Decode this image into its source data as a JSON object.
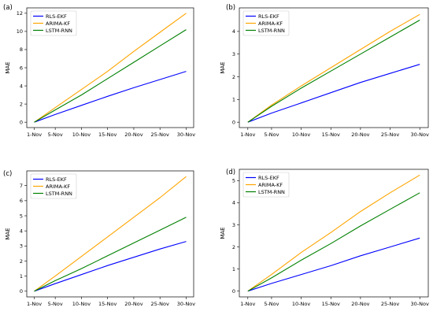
{
  "chart_data": [
    {
      "type": "line",
      "panel_label": "(a)",
      "ylabel": "MAE",
      "xlabel": "",
      "x_tick_labels": [
        "1-Nov",
        "5-Nov",
        "10-Nov",
        "15-Nov",
        "20-Nov",
        "25-Nov",
        "30-Nov"
      ],
      "x_tick_days": [
        1,
        5,
        10,
        15,
        20,
        25,
        30
      ],
      "xlim": [
        1,
        30
      ],
      "ylim": [
        0,
        12
      ],
      "y_ticks": [
        0,
        2,
        4,
        6,
        8,
        10,
        12
      ],
      "legend_position": "top-left",
      "grid": false,
      "series": [
        {
          "name": "RLS-EKF",
          "color": "#0000ff",
          "x": [
            1,
            5,
            10,
            15,
            20,
            25,
            30
          ],
          "y": [
            0.0,
            0.85,
            1.85,
            2.85,
            3.8,
            4.7,
            5.6
          ]
        },
        {
          "name": "ARIMA-KF",
          "color": "#ffa500",
          "x": [
            1,
            5,
            10,
            15,
            20,
            25,
            30
          ],
          "y": [
            0.0,
            1.6,
            3.6,
            5.6,
            7.8,
            9.9,
            12.0
          ]
        },
        {
          "name": "LSTM-RNN",
          "color": "#008000",
          "x": [
            1,
            5,
            10,
            15,
            20,
            25,
            30
          ],
          "y": [
            0.0,
            1.35,
            3.0,
            4.8,
            6.6,
            8.4,
            10.2
          ]
        }
      ]
    },
    {
      "type": "line",
      "panel_label": "(b)",
      "ylabel": "MAE",
      "xlabel": "",
      "x_tick_labels": [
        "1-Nov",
        "5-Nov",
        "10-Nov",
        "15-Nov",
        "20-Nov",
        "25-Nov",
        "30-Nov"
      ],
      "x_tick_days": [
        1,
        5,
        10,
        15,
        20,
        25,
        30
      ],
      "xlim": [
        1,
        30
      ],
      "ylim": [
        0,
        4.8
      ],
      "y_ticks": [
        0,
        1,
        2,
        3,
        4
      ],
      "legend_position": "top-left",
      "grid": false,
      "series": [
        {
          "name": "RLS-EKF",
          "color": "#0000ff",
          "x": [
            1,
            5,
            10,
            15,
            20,
            25,
            30
          ],
          "y": [
            0.0,
            0.4,
            0.85,
            1.3,
            1.75,
            2.15,
            2.55
          ]
        },
        {
          "name": "ARIMA-KF",
          "color": "#ffa500",
          "x": [
            1,
            5,
            10,
            15,
            20,
            25,
            30
          ],
          "y": [
            0.0,
            0.75,
            1.6,
            2.4,
            3.2,
            4.0,
            4.75
          ]
        },
        {
          "name": "LSTM-RNN",
          "color": "#008000",
          "x": [
            1,
            5,
            10,
            15,
            20,
            25,
            30
          ],
          "y": [
            0.0,
            0.7,
            1.5,
            2.25,
            3.0,
            3.75,
            4.5
          ]
        }
      ]
    },
    {
      "type": "line",
      "panel_label": "(c)",
      "ylabel": "MAE",
      "xlabel": "",
      "x_tick_labels": [
        "1-Nov",
        "5-Nov",
        "10-Nov",
        "15-Nov",
        "20-Nov",
        "25-Nov",
        "30-Nov"
      ],
      "x_tick_days": [
        1,
        5,
        10,
        15,
        20,
        25,
        30
      ],
      "xlim": [
        1,
        30
      ],
      "ylim": [
        0,
        7.6
      ],
      "y_ticks": [
        0,
        1,
        2,
        3,
        4,
        5,
        6,
        7
      ],
      "legend_position": "top-left",
      "grid": false,
      "series": [
        {
          "name": "RLS-EKF",
          "color": "#0000ff",
          "x": [
            1,
            5,
            10,
            15,
            20,
            25,
            30
          ],
          "y": [
            0.0,
            0.5,
            1.1,
            1.7,
            2.25,
            2.8,
            3.3
          ]
        },
        {
          "name": "ARIMA-KF",
          "color": "#ffa500",
          "x": [
            1,
            5,
            10,
            15,
            20,
            25,
            30
          ],
          "y": [
            0.0,
            1.0,
            2.3,
            3.6,
            4.9,
            6.2,
            7.6
          ]
        },
        {
          "name": "LSTM-RNN",
          "color": "#008000",
          "x": [
            1,
            5,
            10,
            15,
            20,
            25,
            30
          ],
          "y": [
            0.0,
            0.7,
            1.5,
            2.35,
            3.2,
            4.05,
            4.9
          ]
        }
      ]
    },
    {
      "type": "line",
      "panel_label": "(d)",
      "ylabel": "MAE",
      "xlabel": "",
      "x_tick_labels": [
        "1-Nov",
        "5-Nov",
        "10-Nov",
        "15-Nov",
        "20-Nov",
        "25-Nov",
        "30-Nov"
      ],
      "x_tick_days": [
        1,
        5,
        10,
        15,
        20,
        25,
        30
      ],
      "xlim": [
        1,
        30
      ],
      "ylim": [
        0,
        5.25
      ],
      "y_ticks": [
        0,
        1,
        2,
        3,
        4,
        5
      ],
      "legend_position": "top-left",
      "grid": false,
      "series": [
        {
          "name": "RLS-EKF",
          "color": "#0000ff",
          "x": [
            1,
            5,
            10,
            15,
            20,
            25,
            30
          ],
          "y": [
            0.0,
            0.35,
            0.75,
            1.15,
            1.6,
            2.0,
            2.4
          ]
        },
        {
          "name": "ARIMA-KF",
          "color": "#ffa500",
          "x": [
            1,
            5,
            10,
            15,
            20,
            25,
            30
          ],
          "y": [
            0.0,
            0.75,
            1.75,
            2.65,
            3.6,
            4.45,
            5.25
          ]
        },
        {
          "name": "LSTM-RNN",
          "color": "#008000",
          "x": [
            1,
            5,
            10,
            15,
            20,
            25,
            30
          ],
          "y": [
            0.0,
            0.6,
            1.4,
            2.15,
            2.95,
            3.7,
            4.45
          ]
        }
      ]
    }
  ]
}
